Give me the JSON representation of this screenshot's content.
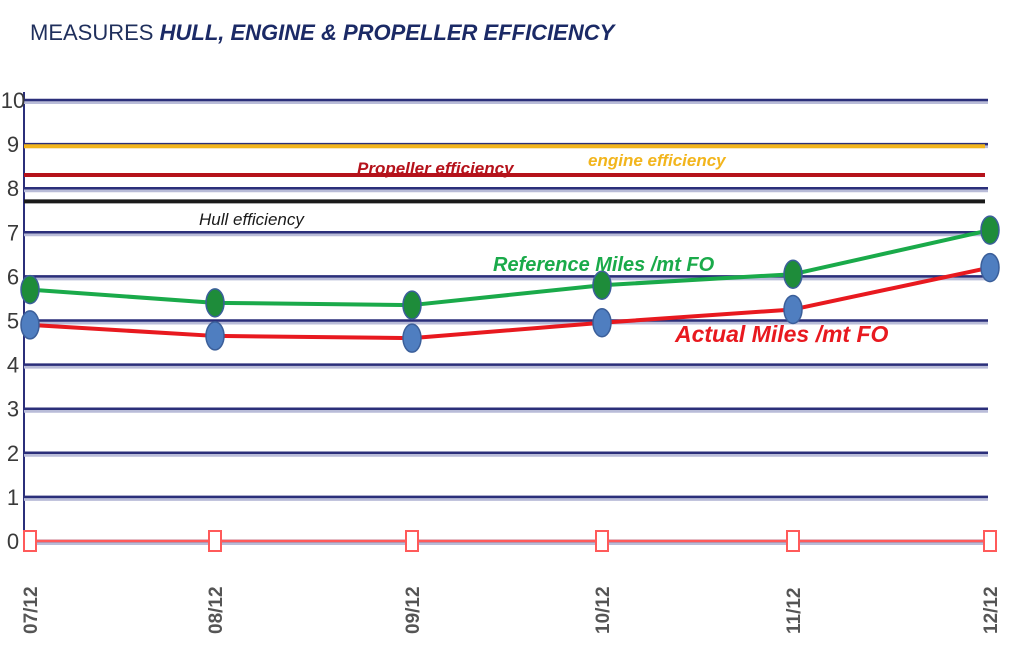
{
  "title": {
    "prefix": "MEASURES",
    "main": "HULL, ENGINE & PROPELLER EFFICIENCY"
  },
  "chart_data": {
    "type": "line",
    "x": [
      "07/12",
      "08/12",
      "09/12",
      "10/12",
      "11/12",
      "12/12"
    ],
    "ylim": [
      0,
      10
    ],
    "yticks": [
      0,
      1,
      2,
      3,
      4,
      5,
      6,
      7,
      8,
      9,
      10
    ],
    "grid": true,
    "series": [
      {
        "name": "Reference Miles /mt FO",
        "values": [
          5.7,
          5.4,
          5.35,
          5.8,
          6.05,
          7.05
        ],
        "color": "#1aaa4a",
        "marker_color": "#1e8c3a"
      },
      {
        "name": "Actual Miles /mt FO",
        "values": [
          4.9,
          4.65,
          4.6,
          4.95,
          5.25,
          6.2
        ],
        "color": "#e8191f",
        "marker_color": "#4f7ec0"
      },
      {
        "name": "",
        "values": [
          0,
          0,
          0,
          0,
          0,
          0
        ],
        "color": "#ff5a5a",
        "marker_color": "#ffffff"
      }
    ],
    "reference_lines": [
      {
        "name": "engine efficiency",
        "y": 8.95,
        "color": "#f2b51d"
      },
      {
        "name": "Propeller efficiency",
        "y": 8.3,
        "color": "#b5121b"
      },
      {
        "name": "Hull efficiency",
        "y": 7.7,
        "color": "#1a1a1a"
      }
    ],
    "annotations": [
      {
        "text": "engine efficiency",
        "color": "#f2b51d"
      },
      {
        "text": "Propeller efficiency",
        "color": "#b5121b"
      },
      {
        "text": "Hull efficiency",
        "color": "#1a1a1a"
      },
      {
        "text": "Reference Miles /mt FO",
        "color": "#1aaa4a"
      },
      {
        "text": "Actual Miles /mt FO",
        "color": "#e8191f"
      }
    ]
  }
}
